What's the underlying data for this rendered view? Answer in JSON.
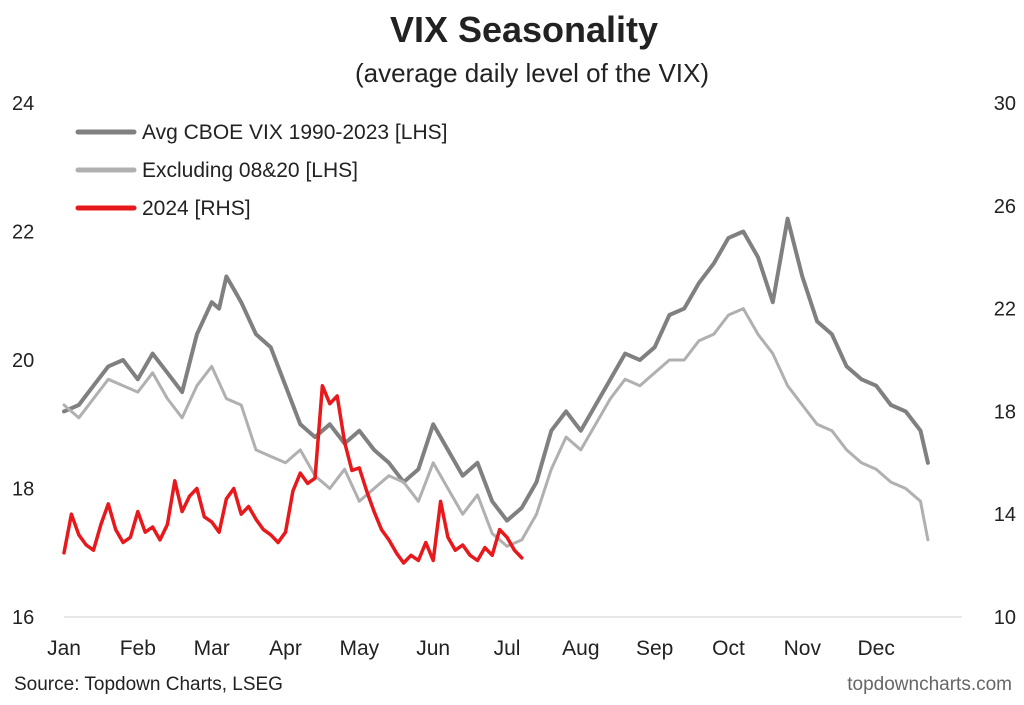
{
  "chart_data": {
    "type": "line",
    "title": "VIX Seasonality",
    "subtitle": "(average daily level of the VIX)",
    "source": "Source: Topdown Charts, LSEG",
    "watermark": "topdowncharts.com",
    "x_categories": [
      "Jan",
      "Feb",
      "Mar",
      "Apr",
      "May",
      "Jun",
      "Jul",
      "Aug",
      "Sep",
      "Oct",
      "Nov",
      "Dec"
    ],
    "x_range": [
      0,
      12
    ],
    "y_left": {
      "label": "LHS",
      "range": [
        16,
        24
      ],
      "ticks": [
        16,
        18,
        20,
        22,
        24
      ]
    },
    "y_right": {
      "label": "RHS",
      "range": [
        10,
        30
      ],
      "ticks": [
        10,
        14,
        18,
        22,
        26,
        30
      ]
    },
    "legend_position": "top-left",
    "series": [
      {
        "name": "Avg CBOE VIX 1990-2023 [LHS]",
        "axis": "left",
        "color": "#808080",
        "x": [
          0.0,
          0.2,
          0.4,
          0.6,
          0.8,
          1.0,
          1.2,
          1.4,
          1.6,
          1.8,
          2.0,
          2.1,
          2.2,
          2.3,
          2.4,
          2.6,
          2.8,
          3.0,
          3.2,
          3.4,
          3.6,
          3.8,
          4.0,
          4.2,
          4.4,
          4.6,
          4.8,
          5.0,
          5.2,
          5.4,
          5.6,
          5.8,
          6.0,
          6.2,
          6.4,
          6.6,
          6.8,
          7.0,
          7.2,
          7.4,
          7.6,
          7.8,
          8.0,
          8.2,
          8.4,
          8.6,
          8.8,
          9.0,
          9.2,
          9.4,
          9.6,
          9.8,
          10.0,
          10.2,
          10.4,
          10.6,
          10.8,
          11.0,
          11.2,
          11.4,
          11.6,
          11.7
        ],
        "values": [
          19.2,
          19.3,
          19.6,
          19.9,
          20.0,
          19.7,
          20.1,
          19.8,
          19.5,
          20.4,
          20.9,
          20.8,
          21.3,
          21.1,
          20.9,
          20.4,
          20.2,
          19.6,
          19.0,
          18.8,
          19.0,
          18.7,
          18.9,
          18.6,
          18.4,
          18.1,
          18.3,
          19.0,
          18.6,
          18.2,
          18.4,
          17.8,
          17.5,
          17.7,
          18.1,
          18.9,
          19.2,
          18.9,
          19.3,
          19.7,
          20.1,
          20.0,
          20.2,
          20.7,
          20.8,
          21.2,
          21.5,
          21.9,
          22.0,
          21.6,
          20.9,
          22.2,
          21.3,
          20.6,
          20.4,
          19.9,
          19.7,
          19.6,
          19.3,
          19.2,
          18.9,
          18.4
        ]
      },
      {
        "name": "Excluding 08&20 [LHS]",
        "axis": "left",
        "color": "#b0b0b0",
        "x": [
          0.0,
          0.2,
          0.4,
          0.6,
          0.8,
          1.0,
          1.2,
          1.4,
          1.6,
          1.8,
          2.0,
          2.2,
          2.4,
          2.6,
          2.8,
          3.0,
          3.2,
          3.4,
          3.6,
          3.8,
          4.0,
          4.2,
          4.4,
          4.6,
          4.8,
          5.0,
          5.2,
          5.4,
          5.6,
          5.8,
          6.0,
          6.2,
          6.4,
          6.6,
          6.8,
          7.0,
          7.2,
          7.4,
          7.6,
          7.8,
          8.0,
          8.2,
          8.4,
          8.6,
          8.8,
          9.0,
          9.2,
          9.4,
          9.6,
          9.8,
          10.0,
          10.2,
          10.4,
          10.6,
          10.8,
          11.0,
          11.2,
          11.4,
          11.6,
          11.7
        ],
        "values": [
          19.3,
          19.1,
          19.4,
          19.7,
          19.6,
          19.5,
          19.8,
          19.4,
          19.1,
          19.6,
          19.9,
          19.4,
          19.3,
          18.6,
          18.5,
          18.4,
          18.6,
          18.2,
          18.0,
          18.3,
          17.8,
          18.0,
          18.2,
          18.1,
          17.8,
          18.4,
          18.0,
          17.6,
          17.9,
          17.3,
          17.1,
          17.2,
          17.6,
          18.3,
          18.8,
          18.6,
          19.0,
          19.4,
          19.7,
          19.6,
          19.8,
          20.0,
          20.0,
          20.3,
          20.4,
          20.7,
          20.8,
          20.4,
          20.1,
          19.6,
          19.3,
          19.0,
          18.9,
          18.6,
          18.4,
          18.3,
          18.1,
          18.0,
          17.8,
          17.2
        ]
      },
      {
        "name": "2024 [RHS]",
        "axis": "right",
        "color": "#e8191c",
        "x": [
          0.0,
          0.1,
          0.2,
          0.3,
          0.4,
          0.5,
          0.6,
          0.7,
          0.8,
          0.9,
          1.0,
          1.1,
          1.2,
          1.3,
          1.4,
          1.5,
          1.6,
          1.7,
          1.8,
          1.9,
          2.0,
          2.1,
          2.2,
          2.3,
          2.4,
          2.5,
          2.6,
          2.7,
          2.8,
          2.9,
          3.0,
          3.1,
          3.2,
          3.3,
          3.4,
          3.5,
          3.6,
          3.7,
          3.8,
          3.9,
          4.0,
          4.1,
          4.2,
          4.3,
          4.4,
          4.5,
          4.6,
          4.7,
          4.8,
          4.9,
          5.0,
          5.1,
          5.2,
          5.3,
          5.4,
          5.5,
          5.6,
          5.7,
          5.8,
          5.9,
          6.0,
          6.1,
          6.2
        ],
        "values": [
          12.5,
          14.0,
          13.2,
          12.8,
          12.6,
          13.6,
          14.4,
          13.4,
          12.9,
          13.1,
          14.1,
          13.3,
          13.5,
          13.0,
          13.6,
          15.3,
          14.1,
          14.7,
          15.0,
          13.9,
          13.7,
          13.3,
          14.6,
          15.0,
          14.0,
          14.3,
          13.8,
          13.4,
          13.2,
          12.9,
          13.3,
          14.9,
          15.6,
          15.2,
          15.4,
          19.0,
          18.3,
          18.6,
          16.8,
          15.7,
          15.8,
          14.9,
          14.1,
          13.4,
          13.0,
          12.5,
          12.1,
          12.4,
          12.2,
          12.9,
          12.2,
          14.5,
          13.1,
          12.6,
          12.8,
          12.4,
          12.2,
          12.7,
          12.4,
          13.4,
          13.1,
          12.6,
          12.3
        ]
      }
    ]
  }
}
